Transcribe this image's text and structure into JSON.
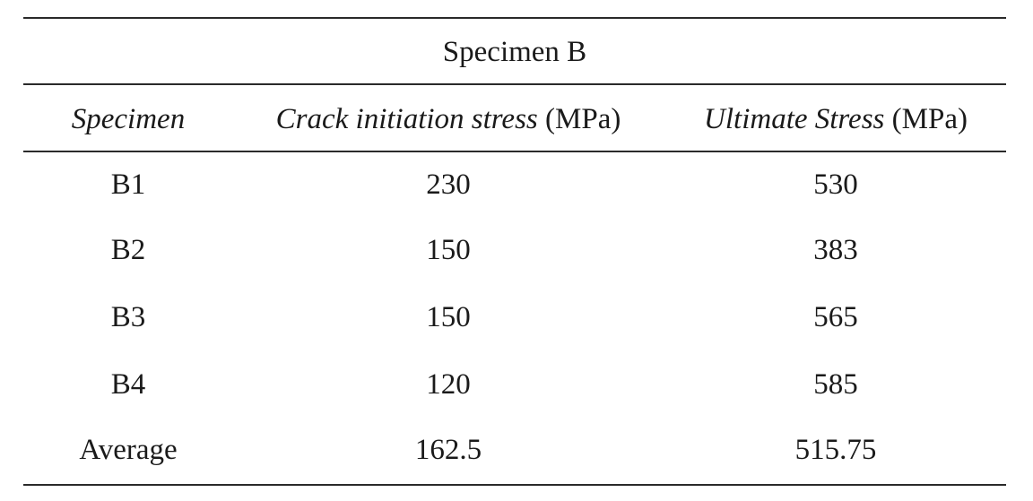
{
  "table": {
    "caption": "Specimen B",
    "headers": {
      "specimen": "Specimen",
      "crack_label": "Crack initiation stress",
      "crack_unit": " (MPa)",
      "ultimate_label": "Ultimate Stress",
      "ultimate_unit": " (MPa)"
    },
    "rows": [
      {
        "specimen": "B1",
        "crack": "230",
        "ultimate": "530"
      },
      {
        "specimen": "B2",
        "crack": "150",
        "ultimate": "383"
      },
      {
        "specimen": "B3",
        "crack": "150",
        "ultimate": "565"
      },
      {
        "specimen": "B4",
        "crack": "120",
        "ultimate": "585"
      },
      {
        "specimen": "Average",
        "crack": "162.5",
        "ultimate": "515.75"
      }
    ]
  }
}
